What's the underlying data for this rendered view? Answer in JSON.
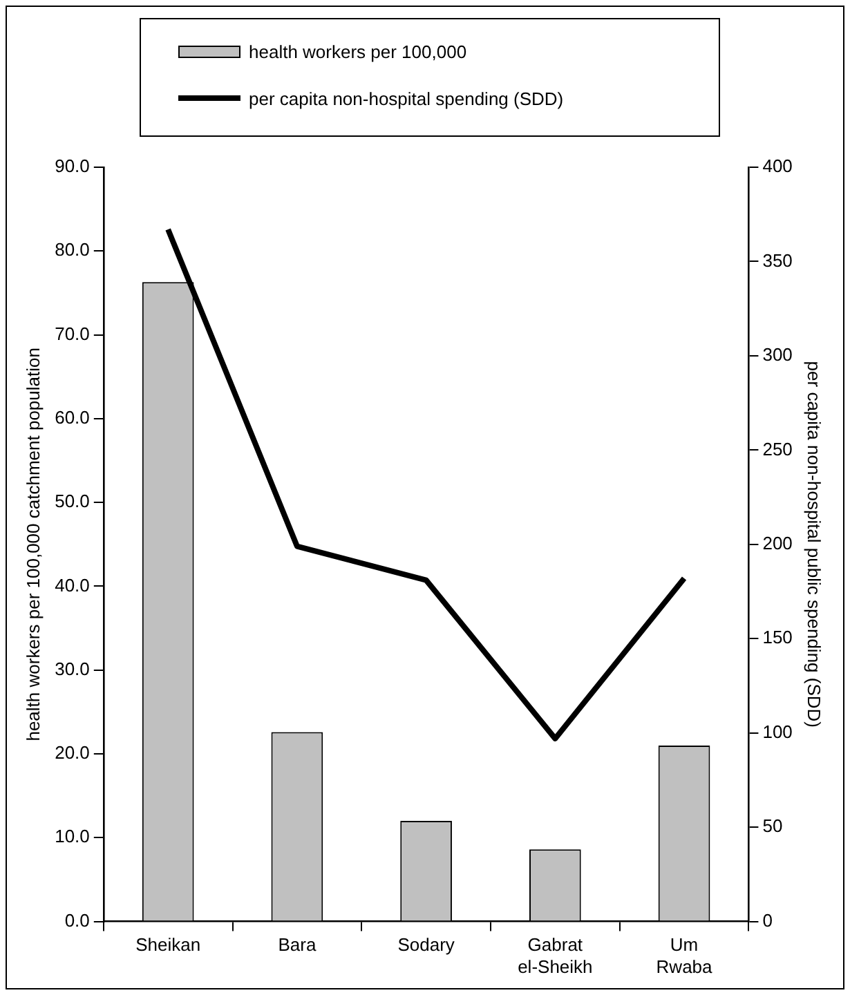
{
  "chart_data": {
    "type": "bar",
    "categories": [
      "Sheikan",
      "Bara",
      "Sodary",
      "Gabrat el-Sheikh",
      "Um Rwaba"
    ],
    "series": [
      {
        "name": "health workers per 100,000",
        "color": "#c0c0c0",
        "values": [
          76.3,
          22.6,
          12.0,
          8.6,
          21.0
        ]
      },
      {
        "name": "per capita non-hospital spending (SDD)",
        "type": "line",
        "axis": "y2",
        "color": "#000000",
        "marker": "none",
        "line_style": "solid",
        "values": [
          367,
          199,
          181,
          97,
          182
        ]
      }
    ],
    "ylabel": "health workers per 100,000 catchment population",
    "y2label": "per capita non-hospital public spending (SDD)",
    "ylim": [
      0,
      90
    ],
    "yticks": [
      {
        "value": 0,
        "label": "0.0"
      },
      {
        "value": 10,
        "label": "10.0"
      },
      {
        "value": 20,
        "label": "20.0"
      },
      {
        "value": 30,
        "label": "30.0"
      },
      {
        "value": 40,
        "label": "40.0"
      },
      {
        "value": 50,
        "label": "50.0"
      },
      {
        "value": 60,
        "label": "60.0"
      },
      {
        "value": 70,
        "label": "70.0"
      },
      {
        "value": 80,
        "label": "80.0"
      },
      {
        "value": 90,
        "label": "90.0"
      }
    ],
    "y2lim": [
      0,
      400
    ],
    "y2ticks": [
      0,
      50,
      100,
      150,
      200,
      250,
      300,
      350,
      400
    ],
    "grid": false,
    "legend": "top"
  }
}
